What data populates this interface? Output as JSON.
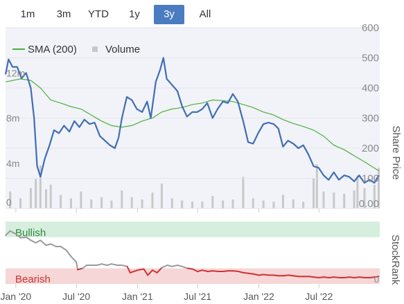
{
  "range_buttons": [
    {
      "label": "1m",
      "active": false
    },
    {
      "label": "3m",
      "active": false
    },
    {
      "label": "YTD",
      "active": false
    },
    {
      "label": "1y",
      "active": false
    },
    {
      "label": "3y",
      "active": true
    },
    {
      "label": "All",
      "active": false
    }
  ],
  "colors": {
    "price": "#3f6db5",
    "sma": "#4caf3b",
    "volume": "#c8c8c8",
    "rank_good": "#9a9a9a",
    "rank_bad": "#cc3333",
    "bullish_band": "#d6eedd",
    "bearish_band": "#f6d6d6",
    "plot_bg": "#f1f3f8",
    "button_active": "#4a7cc1"
  },
  "chart_data": {
    "type": "line",
    "legend": {
      "placement": "top-left",
      "entries": [
        {
          "name": "SMA (200)",
          "symbol": "line"
        },
        {
          "name": "Volume",
          "symbol": "square"
        }
      ]
    },
    "x_axis": {
      "range": [
        "2019-12-01",
        "2022-12-31"
      ],
      "tick_labels": [
        "Jan '20",
        "Jul '20",
        "Jan '21",
        "Jul '21",
        "Jan '22",
        "Jul '22"
      ],
      "tick_dates": [
        "2020-01-01",
        "2020-07-01",
        "2021-01-01",
        "2021-07-01",
        "2022-01-01",
        "2022-07-01"
      ]
    },
    "price_axis": {
      "label": "Share Price",
      "position": "right",
      "range": [
        0,
        600
      ],
      "tick_labels": [
        "0.00",
        "100",
        "200",
        "300",
        "400",
        "500",
        "600"
      ]
    },
    "volume_axis": {
      "position": "left",
      "range": [
        0,
        16000000
      ],
      "tick_labels": [
        "0",
        "4m",
        "8m",
        "12m"
      ]
    },
    "rank_axis": {
      "label": "StockRank",
      "position": "right",
      "range": [
        0,
        100
      ],
      "tick_labels": [
        "0"
      ],
      "zones": [
        {
          "label": "Bullish",
          "from": 75,
          "to": 100
        },
        {
          "label": "Bearish",
          "from": 0,
          "to": 25
        }
      ]
    },
    "price": [
      [
        "2019-12-01",
        445
      ],
      [
        "2019-12-10",
        495
      ],
      [
        "2019-12-22",
        470
      ],
      [
        "2020-01-05",
        470
      ],
      [
        "2020-01-18",
        432
      ],
      [
        "2020-02-01",
        450
      ],
      [
        "2020-02-15",
        400
      ],
      [
        "2020-02-25",
        300
      ],
      [
        "2020-03-05",
        140
      ],
      [
        "2020-03-15",
        105
      ],
      [
        "2020-03-28",
        165
      ],
      [
        "2020-04-10",
        205
      ],
      [
        "2020-04-25",
        260
      ],
      [
        "2020-05-10",
        250
      ],
      [
        "2020-05-25",
        275
      ],
      [
        "2020-06-10",
        255
      ],
      [
        "2020-06-25",
        290
      ],
      [
        "2020-07-10",
        270
      ],
      [
        "2020-07-25",
        295
      ],
      [
        "2020-08-10",
        280
      ],
      [
        "2020-08-25",
        285
      ],
      [
        "2020-09-10",
        240
      ],
      [
        "2020-09-25",
        225
      ],
      [
        "2020-10-10",
        210
      ],
      [
        "2020-10-25",
        200
      ],
      [
        "2020-11-05",
        235
      ],
      [
        "2020-11-15",
        300
      ],
      [
        "2020-11-30",
        370
      ],
      [
        "2020-12-15",
        360
      ],
      [
        "2020-12-30",
        330
      ],
      [
        "2021-01-15",
        320
      ],
      [
        "2021-01-30",
        355
      ],
      [
        "2021-02-10",
        300
      ],
      [
        "2021-02-25",
        420
      ],
      [
        "2021-03-10",
        460
      ],
      [
        "2021-03-20",
        500
      ],
      [
        "2021-03-30",
        430
      ],
      [
        "2021-04-15",
        410
      ],
      [
        "2021-05-01",
        390
      ],
      [
        "2021-05-15",
        340
      ],
      [
        "2021-05-30",
        305
      ],
      [
        "2021-06-15",
        320
      ],
      [
        "2021-06-30",
        320
      ],
      [
        "2021-07-15",
        330
      ],
      [
        "2021-07-30",
        350
      ],
      [
        "2021-08-15",
        300
      ],
      [
        "2021-08-30",
        330
      ],
      [
        "2021-09-15",
        355
      ],
      [
        "2021-09-30",
        350
      ],
      [
        "2021-10-15",
        380
      ],
      [
        "2021-10-30",
        355
      ],
      [
        "2021-11-15",
        290
      ],
      [
        "2021-11-30",
        220
      ],
      [
        "2021-12-15",
        215
      ],
      [
        "2021-12-30",
        250
      ],
      [
        "2022-01-15",
        280
      ],
      [
        "2022-01-30",
        285
      ],
      [
        "2022-02-15",
        280
      ],
      [
        "2022-03-01",
        265
      ],
      [
        "2022-03-15",
        205
      ],
      [
        "2022-03-30",
        225
      ],
      [
        "2022-04-15",
        215
      ],
      [
        "2022-04-30",
        200
      ],
      [
        "2022-05-15",
        210
      ],
      [
        "2022-05-30",
        180
      ],
      [
        "2022-06-15",
        140
      ],
      [
        "2022-06-30",
        135
      ],
      [
        "2022-07-15",
        110
      ],
      [
        "2022-07-30",
        95
      ],
      [
        "2022-08-15",
        120
      ],
      [
        "2022-08-30",
        95
      ],
      [
        "2022-09-15",
        110
      ],
      [
        "2022-09-30",
        105
      ],
      [
        "2022-10-15",
        90
      ],
      [
        "2022-10-30",
        110
      ],
      [
        "2022-11-15",
        85
      ],
      [
        "2022-11-30",
        95
      ],
      [
        "2022-12-15",
        85
      ],
      [
        "2022-12-28",
        110
      ]
    ],
    "sma_200": [
      [
        "2019-12-01",
        420
      ],
      [
        "2020-01-15",
        430
      ],
      [
        "2020-02-15",
        425
      ],
      [
        "2020-03-15",
        400
      ],
      [
        "2020-04-15",
        360
      ],
      [
        "2020-05-15",
        350
      ],
      [
        "2020-06-15",
        338
      ],
      [
        "2020-07-15",
        330
      ],
      [
        "2020-08-15",
        310
      ],
      [
        "2020-09-15",
        290
      ],
      [
        "2020-10-15",
        275
      ],
      [
        "2020-11-15",
        270
      ],
      [
        "2020-12-15",
        275
      ],
      [
        "2021-01-15",
        290
      ],
      [
        "2021-02-15",
        300
      ],
      [
        "2021-03-15",
        320
      ],
      [
        "2021-04-15",
        330
      ],
      [
        "2021-05-15",
        335
      ],
      [
        "2021-06-15",
        345
      ],
      [
        "2021-07-15",
        350
      ],
      [
        "2021-08-15",
        360
      ],
      [
        "2021-09-15",
        358
      ],
      [
        "2021-10-15",
        355
      ],
      [
        "2021-11-15",
        345
      ],
      [
        "2021-12-15",
        335
      ],
      [
        "2022-01-15",
        320
      ],
      [
        "2022-02-15",
        310
      ],
      [
        "2022-03-15",
        295
      ],
      [
        "2022-04-15",
        282
      ],
      [
        "2022-05-15",
        272
      ],
      [
        "2022-06-15",
        260
      ],
      [
        "2022-07-15",
        240
      ],
      [
        "2022-08-15",
        210
      ],
      [
        "2022-09-15",
        195
      ],
      [
        "2022-10-15",
        175
      ],
      [
        "2022-11-15",
        155
      ],
      [
        "2022-12-28",
        125
      ]
    ],
    "volume": [
      [
        "2019-12-15",
        1500000
      ],
      [
        "2020-01-15",
        900000
      ],
      [
        "2020-02-15",
        1800000
      ],
      [
        "2020-03-01",
        2600000
      ],
      [
        "2020-03-15",
        3800000
      ],
      [
        "2020-04-01",
        1700000
      ],
      [
        "2020-04-15",
        2100000
      ],
      [
        "2020-05-15",
        1200000
      ],
      [
        "2020-06-15",
        900000
      ],
      [
        "2020-07-15",
        1500000
      ],
      [
        "2020-08-15",
        800000
      ],
      [
        "2020-09-15",
        1000000
      ],
      [
        "2020-10-15",
        700000
      ],
      [
        "2020-11-15",
        1600000
      ],
      [
        "2020-12-15",
        1000000
      ],
      [
        "2021-01-15",
        800000
      ],
      [
        "2021-02-15",
        1400000
      ],
      [
        "2021-03-15",
        2200000
      ],
      [
        "2021-04-15",
        900000
      ],
      [
        "2021-05-15",
        700000
      ],
      [
        "2021-06-15",
        600000
      ],
      [
        "2021-07-15",
        600000
      ],
      [
        "2021-08-15",
        1100000
      ],
      [
        "2021-09-15",
        700000
      ],
      [
        "2021-10-15",
        800000
      ],
      [
        "2021-11-15",
        2800000
      ],
      [
        "2021-12-15",
        900000
      ],
      [
        "2022-01-15",
        700000
      ],
      [
        "2022-02-15",
        600000
      ],
      [
        "2022-03-15",
        1200000
      ],
      [
        "2022-04-15",
        800000
      ],
      [
        "2022-05-15",
        600000
      ],
      [
        "2022-06-15",
        2700000
      ],
      [
        "2022-06-25",
        3900000
      ],
      [
        "2022-07-15",
        1500000
      ],
      [
        "2022-08-15",
        1400000
      ],
      [
        "2022-09-15",
        1300000
      ],
      [
        "2022-10-15",
        1600000
      ],
      [
        "2022-10-25",
        2900000
      ],
      [
        "2022-11-15",
        1800000
      ],
      [
        "2022-12-15",
        2100000
      ],
      [
        "2022-12-28",
        3600000
      ]
    ],
    "stockrank": [
      [
        "2019-12-01",
        78
      ],
      [
        "2019-12-15",
        85
      ],
      [
        "2020-01-01",
        80
      ],
      [
        "2020-01-15",
        74
      ],
      [
        "2020-02-01",
        75
      ],
      [
        "2020-02-15",
        70
      ],
      [
        "2020-03-01",
        66
      ],
      [
        "2020-03-15",
        70
      ],
      [
        "2020-04-01",
        62
      ],
      [
        "2020-04-15",
        64
      ],
      [
        "2020-05-01",
        60
      ],
      [
        "2020-05-15",
        60
      ],
      [
        "2020-06-01",
        54
      ],
      [
        "2020-06-15",
        44
      ],
      [
        "2020-07-01",
        35
      ],
      [
        "2020-07-05",
        23
      ],
      [
        "2020-07-20",
        25
      ],
      [
        "2020-08-01",
        30
      ],
      [
        "2020-08-15",
        30
      ],
      [
        "2020-09-01",
        30
      ],
      [
        "2020-09-15",
        32
      ],
      [
        "2020-10-01",
        30
      ],
      [
        "2020-10-15",
        32
      ],
      [
        "2020-11-01",
        30
      ],
      [
        "2020-11-15",
        30
      ],
      [
        "2020-12-01",
        28
      ],
      [
        "2020-12-10",
        18
      ],
      [
        "2021-01-01",
        22
      ],
      [
        "2021-01-20",
        24
      ],
      [
        "2021-02-01",
        14
      ],
      [
        "2021-02-15",
        22
      ],
      [
        "2021-03-01",
        18
      ],
      [
        "2021-03-15",
        26
      ],
      [
        "2021-04-01",
        30
      ],
      [
        "2021-04-15",
        28
      ],
      [
        "2021-05-01",
        30
      ],
      [
        "2021-05-15",
        28
      ],
      [
        "2021-06-01",
        25
      ],
      [
        "2021-06-15",
        24
      ],
      [
        "2021-07-01",
        20
      ],
      [
        "2021-07-15",
        22
      ],
      [
        "2021-08-01",
        20
      ],
      [
        "2021-08-15",
        21
      ],
      [
        "2021-09-01",
        20
      ],
      [
        "2021-09-15",
        20
      ],
      [
        "2021-10-01",
        21
      ],
      [
        "2021-10-15",
        21
      ],
      [
        "2021-11-01",
        20
      ],
      [
        "2021-11-15",
        18
      ],
      [
        "2021-12-01",
        17
      ],
      [
        "2021-12-15",
        16
      ],
      [
        "2022-01-01",
        14
      ],
      [
        "2022-01-15",
        15
      ],
      [
        "2022-02-01",
        14
      ],
      [
        "2022-02-15",
        14
      ],
      [
        "2022-03-01",
        13
      ],
      [
        "2022-03-15",
        13
      ],
      [
        "2022-04-01",
        14
      ],
      [
        "2022-04-15",
        13
      ],
      [
        "2022-05-01",
        12
      ],
      [
        "2022-05-15",
        12
      ],
      [
        "2022-06-01",
        12
      ],
      [
        "2022-06-15",
        11
      ],
      [
        "2022-07-01",
        10
      ],
      [
        "2022-07-15",
        11
      ],
      [
        "2022-08-01",
        10
      ],
      [
        "2022-08-15",
        11
      ],
      [
        "2022-09-01",
        10
      ],
      [
        "2022-09-15",
        10
      ],
      [
        "2022-10-01",
        11
      ],
      [
        "2022-10-15",
        10
      ],
      [
        "2022-11-01",
        11
      ],
      [
        "2022-11-15",
        10
      ],
      [
        "2022-12-01",
        10
      ],
      [
        "2022-12-15",
        11
      ],
      [
        "2022-12-28",
        12
      ]
    ]
  }
}
